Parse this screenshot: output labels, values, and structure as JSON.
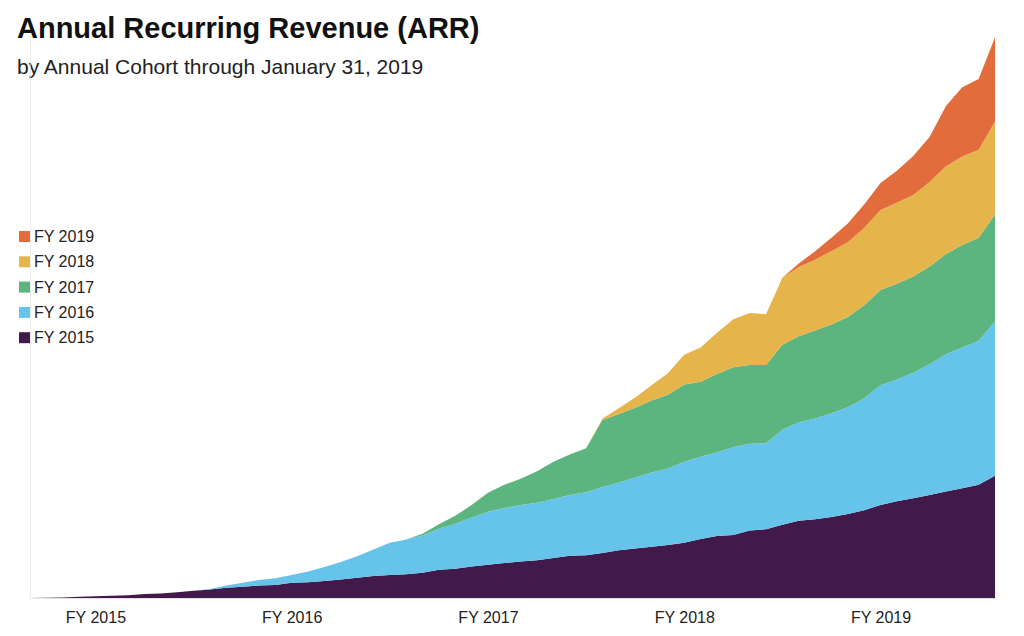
{
  "chart_data": {
    "type": "area",
    "title": "Annual Recurring Revenue (ARR)",
    "subtitle": "by Annual Cohort through January 31, 2019",
    "stacked": true,
    "legend": "left",
    "tick_labels": "x",
    "ylim": [
      0,
      100
    ],
    "categories": [
      null,
      null,
      null,
      null,
      "FY 2015",
      null,
      null,
      null,
      null,
      null,
      null,
      null,
      null,
      null,
      null,
      null,
      "FY 2016",
      null,
      null,
      null,
      null,
      null,
      null,
      null,
      null,
      null,
      null,
      null,
      "FY 2017",
      null,
      null,
      null,
      null,
      null,
      null,
      null,
      null,
      null,
      null,
      null,
      "FY 2018",
      null,
      null,
      null,
      null,
      null,
      null,
      null,
      null,
      null,
      null,
      null,
      "FY 2019",
      null,
      null,
      null,
      null,
      null,
      null,
      null
    ],
    "series": [
      {
        "name": "FY 2015",
        "color": "#41194a",
        "values": [
          0,
          0.05,
          0.1,
          0.2,
          0.3,
          0.4,
          0.5,
          0.7,
          0.8,
          1.0,
          1.3,
          1.5,
          1.8,
          2.0,
          2.2,
          2.3,
          2.7,
          2.8,
          3.0,
          3.3,
          3.6,
          3.9,
          4.1,
          4.2,
          4.5,
          5.0,
          5.2,
          5.6,
          5.9,
          6.2,
          6.5,
          6.7,
          7.1,
          7.5,
          7.6,
          8.0,
          8.5,
          8.8,
          9.1,
          9.4,
          9.8,
          10.5,
          11.0,
          11.2,
          12.0,
          12.2,
          13.0,
          13.7,
          14.0,
          14.4,
          14.9,
          15.6,
          16.5,
          17.2,
          17.7,
          18.3,
          18.9,
          19.5,
          20.1,
          21.7
        ]
      },
      {
        "name": "FY 2016",
        "color": "#66c3ea",
        "values": [
          0,
          0,
          0,
          0,
          0,
          0,
          0,
          0,
          0,
          0,
          0,
          0.1,
          0.4,
          0.7,
          1.0,
          1.2,
          1.4,
          1.9,
          2.5,
          3.1,
          3.8,
          4.7,
          5.7,
          6.2,
          6.6,
          7.3,
          8.0,
          8.7,
          9.4,
          9.8,
          10.0,
          10.2,
          10.5,
          10.8,
          11.2,
          11.7,
          12.0,
          12.6,
          13.2,
          13.6,
          14.4,
          14.6,
          14.9,
          15.6,
          15.4,
          15.3,
          16.9,
          17.5,
          17.9,
          18.4,
          19.0,
          19.9,
          21.3,
          21.6,
          22.3,
          23.2,
          24.4,
          25.0,
          25.6,
          27.4
        ]
      },
      {
        "name": "FY 2017",
        "color": "#5cb57e",
        "values": [
          0,
          0,
          0,
          0,
          0,
          0,
          0,
          0,
          0,
          0,
          0,
          0,
          0,
          0,
          0,
          0,
          0,
          0,
          0,
          0,
          0,
          0,
          0,
          0,
          0.3,
          0.8,
          1.4,
          2.2,
          3.4,
          4.1,
          4.7,
          5.6,
          6.6,
          7.2,
          7.8,
          11.9,
          12.2,
          12.4,
          12.8,
          13.1,
          13.7,
          13.3,
          13.9,
          14.2,
          14.0,
          13.9,
          15.1,
          15.3,
          15.6,
          15.8,
          16.0,
          16.5,
          16.9,
          17.0,
          17.1,
          17.4,
          17.8,
          18.2,
          18.3,
          19.0
        ]
      },
      {
        "name": "FY 2018",
        "color": "#e5b54c",
        "values": [
          0,
          0,
          0,
          0,
          0,
          0,
          0,
          0,
          0,
          0,
          0,
          0,
          0,
          0,
          0,
          0,
          0,
          0,
          0,
          0,
          0,
          0,
          0,
          0,
          0,
          0,
          0,
          0,
          0,
          0,
          0,
          0,
          0,
          0,
          0,
          0.3,
          1.0,
          1.8,
          2.7,
          3.8,
          5.3,
          6.1,
          7.3,
          8.5,
          9.2,
          9.0,
          11.9,
          12.3,
          12.6,
          13.0,
          13.3,
          13.7,
          14.2,
          14.4,
          14.5,
          15.0,
          15.6,
          15.7,
          15.6,
          16.5
        ]
      },
      {
        "name": "FY 2019",
        "color": "#e26c3b",
        "values": [
          0,
          0,
          0,
          0,
          0,
          0,
          0,
          0,
          0,
          0,
          0,
          0,
          0,
          0,
          0,
          0,
          0,
          0,
          0,
          0,
          0,
          0,
          0,
          0,
          0,
          0,
          0,
          0,
          0,
          0,
          0,
          0,
          0,
          0,
          0,
          0,
          0,
          0,
          0,
          0,
          0,
          0,
          0,
          0,
          0,
          0,
          0,
          0.6,
          1.5,
          2.4,
          3.3,
          4.2,
          4.8,
          5.7,
          6.9,
          8.0,
          10.7,
          12.3,
          12.6,
          15.0
        ]
      }
    ]
  }
}
